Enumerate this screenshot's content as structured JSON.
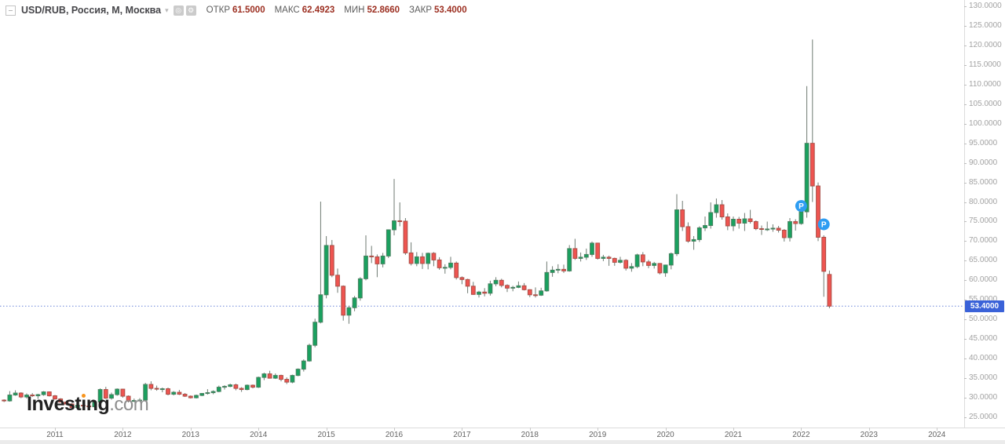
{
  "header": {
    "symbol_title": "USD/RUB, Россия, M, Москва",
    "ohlc": {
      "open_label": "ОТКР",
      "open": "61.5000",
      "high_label": "МАКС",
      "high": "62.4923",
      "low_label": "МИН",
      "low": "52.8660",
      "close_label": "ЗАКР",
      "close": "53.4000"
    },
    "icons": {
      "caret": "▾",
      "snapshot": "◎",
      "settings": "⚙"
    }
  },
  "watermark": {
    "brand_prefix": "Invest",
    "brand_i": "ı",
    "brand_suffix": "ng",
    "com": ".com"
  },
  "price_axis": {
    "labels": [
      "130.0000",
      "125.0000",
      "120.0000",
      "115.0000",
      "110.0000",
      "105.0000",
      "100.0000",
      "95.0000",
      "90.0000",
      "85.0000",
      "80.0000",
      "75.0000",
      "70.0000",
      "65.0000",
      "60.0000",
      "55.0000",
      "50.0000",
      "45.0000",
      "40.0000",
      "35.0000",
      "30.0000",
      "25.0000"
    ],
    "last_price": "53.4000",
    "last_price_value": 53.4,
    "badge_color": "#3a62d8"
  },
  "time_axis": {
    "years": [
      "2011",
      "2012",
      "2013",
      "2014",
      "2015",
      "2016",
      "2017",
      "2018",
      "2019",
      "2020",
      "2021",
      "2022",
      "2023",
      "2024"
    ]
  },
  "markers": [
    {
      "label": "P",
      "candle_index": 141,
      "price": 79.0,
      "color": "#2e9df2"
    },
    {
      "label": "P",
      "candle_index": 145,
      "price": 74.3,
      "color": "#2e9df2"
    }
  ],
  "colors": {
    "up_fill": "#19a15f",
    "up_stroke": "#47805f",
    "down_fill": "#ef5450",
    "down_stroke": "#aa4f47",
    "wick": "#6f7a72",
    "last_price_line": "#6c86d8",
    "axis_text": "#a2a2a2",
    "ohlc_value": "#9c2f21"
  },
  "chart_data": {
    "type": "candlestick",
    "title": "USD/RUB, Россия, M, Москва",
    "timeframe": "monthly",
    "ylim": [
      25,
      130
    ],
    "y_step": 5,
    "x_years": [
      2011,
      2024
    ],
    "grid": false,
    "last_close": 53.4,
    "columns": [
      "month",
      "open",
      "high",
      "low",
      "close"
    ],
    "candles": [
      [
        "2010-04",
        29.4,
        29.6,
        28.9,
        29.2
      ],
      [
        "2010-05",
        29.2,
        31.7,
        29.0,
        30.7
      ],
      [
        "2010-06",
        30.7,
        31.9,
        30.5,
        31.2
      ],
      [
        "2010-07",
        31.2,
        31.4,
        29.9,
        30.2
      ],
      [
        "2010-08",
        30.2,
        31.1,
        29.8,
        30.7
      ],
      [
        "2010-09",
        30.7,
        31.2,
        30.2,
        30.5
      ],
      [
        "2010-10",
        30.5,
        31.0,
        29.7,
        30.8
      ],
      [
        "2010-11",
        30.8,
        31.7,
        30.5,
        31.5
      ],
      [
        "2010-12",
        31.5,
        31.6,
        30.3,
        30.5
      ],
      [
        "2011-01",
        30.5,
        30.7,
        29.5,
        29.7
      ],
      [
        "2011-02",
        29.7,
        29.9,
        28.8,
        28.9
      ],
      [
        "2011-03",
        28.9,
        29.1,
        28.1,
        28.4
      ],
      [
        "2011-04",
        28.4,
        28.6,
        27.2,
        27.5
      ],
      [
        "2011-05",
        27.5,
        28.7,
        27.1,
        28.1
      ],
      [
        "2011-06",
        28.1,
        28.5,
        27.6,
        27.9
      ],
      [
        "2011-07",
        27.9,
        28.3,
        27.4,
        27.7
      ],
      [
        "2011-08",
        27.7,
        29.4,
        27.3,
        28.9
      ],
      [
        "2011-09",
        28.9,
        32.4,
        28.7,
        32.1
      ],
      [
        "2011-10",
        32.1,
        32.8,
        29.7,
        29.9
      ],
      [
        "2011-11",
        29.9,
        31.3,
        29.5,
        30.8
      ],
      [
        "2011-12",
        30.8,
        32.4,
        30.5,
        32.2
      ],
      [
        "2012-01",
        32.2,
        32.3,
        30.0,
        30.4
      ],
      [
        "2012-02",
        30.4,
        30.6,
        28.8,
        29.1
      ],
      [
        "2012-03",
        29.1,
        29.8,
        28.9,
        29.3
      ],
      [
        "2012-04",
        29.3,
        29.9,
        29.1,
        29.4
      ],
      [
        "2012-05",
        29.4,
        33.8,
        29.2,
        33.4
      ],
      [
        "2012-06",
        33.4,
        34.2,
        31.9,
        32.4
      ],
      [
        "2012-07",
        32.4,
        33.1,
        31.8,
        32.2
      ],
      [
        "2012-08",
        32.2,
        32.6,
        31.4,
        32.3
      ],
      [
        "2012-09",
        32.3,
        32.6,
        30.6,
        30.9
      ],
      [
        "2012-10",
        30.9,
        31.7,
        30.6,
        31.4
      ],
      [
        "2012-11",
        31.4,
        32.0,
        30.7,
        30.9
      ],
      [
        "2012-12",
        30.9,
        31.2,
        30.2,
        30.4
      ],
      [
        "2013-01",
        30.4,
        30.6,
        29.8,
        30.0
      ],
      [
        "2013-02",
        30.0,
        30.8,
        29.8,
        30.6
      ],
      [
        "2013-03",
        30.6,
        31.2,
        30.4,
        31.1
      ],
      [
        "2013-04",
        31.1,
        32.2,
        30.8,
        31.3
      ],
      [
        "2013-05",
        31.3,
        31.9,
        30.9,
        31.6
      ],
      [
        "2013-06",
        31.6,
        33.1,
        31.4,
        32.7
      ],
      [
        "2013-07",
        32.7,
        33.2,
        32.1,
        32.9
      ],
      [
        "2013-08",
        32.9,
        33.6,
        32.7,
        33.3
      ],
      [
        "2013-09",
        33.3,
        33.6,
        31.9,
        32.4
      ],
      [
        "2013-10",
        32.4,
        32.7,
        31.5,
        32.1
      ],
      [
        "2013-11",
        32.1,
        33.4,
        31.9,
        33.2
      ],
      [
        "2013-12",
        33.2,
        33.4,
        32.4,
        32.7
      ],
      [
        "2014-01",
        32.7,
        35.4,
        32.5,
        35.2
      ],
      [
        "2014-02",
        35.2,
        36.4,
        34.5,
        36.1
      ],
      [
        "2014-03",
        36.1,
        36.9,
        34.9,
        35.0
      ],
      [
        "2014-04",
        35.0,
        36.2,
        34.8,
        35.7
      ],
      [
        "2014-05",
        35.7,
        35.9,
        34.2,
        34.7
      ],
      [
        "2014-06",
        34.7,
        35.2,
        33.5,
        34.0
      ],
      [
        "2014-07",
        34.0,
        35.9,
        33.7,
        35.7
      ],
      [
        "2014-08",
        35.7,
        37.5,
        35.5,
        37.3
      ],
      [
        "2014-09",
        37.3,
        39.8,
        36.7,
        39.4
      ],
      [
        "2014-10",
        39.4,
        43.8,
        39.2,
        43.4
      ],
      [
        "2014-11",
        43.4,
        50.2,
        42.9,
        49.3
      ],
      [
        "2014-12",
        49.3,
        80.1,
        49.0,
        56.3
      ],
      [
        "2015-01",
        56.3,
        71.3,
        55.4,
        68.9
      ],
      [
        "2015-02",
        68.9,
        70.3,
        60.8,
        61.3
      ],
      [
        "2015-03",
        61.3,
        63.0,
        56.8,
        58.5
      ],
      [
        "2015-04",
        58.5,
        58.7,
        49.7,
        51.1
      ],
      [
        "2015-05",
        51.1,
        53.5,
        48.9,
        53.0
      ],
      [
        "2015-06",
        53.0,
        56.0,
        52.1,
        55.5
      ],
      [
        "2015-07",
        55.5,
        60.8,
        54.8,
        60.4
      ],
      [
        "2015-08",
        60.4,
        71.5,
        60.0,
        66.2
      ],
      [
        "2015-09",
        66.2,
        68.8,
        64.4,
        66.0
      ],
      [
        "2015-10",
        66.0,
        66.6,
        60.8,
        64.2
      ],
      [
        "2015-11",
        64.2,
        67.0,
        63.3,
        66.2
      ],
      [
        "2015-12",
        66.2,
        73.0,
        65.7,
        72.9
      ],
      [
        "2016-01",
        72.9,
        85.9,
        71.5,
        75.2
      ],
      [
        "2016-02",
        75.2,
        79.9,
        73.8,
        75.1
      ],
      [
        "2016-03",
        75.1,
        75.9,
        66.5,
        67.0
      ],
      [
        "2016-04",
        67.0,
        69.7,
        63.8,
        64.3
      ],
      [
        "2016-05",
        64.3,
        67.2,
        63.6,
        66.0
      ],
      [
        "2016-06",
        66.0,
        67.0,
        62.9,
        64.3
      ],
      [
        "2016-07",
        64.3,
        67.1,
        62.8,
        66.9
      ],
      [
        "2016-08",
        66.9,
        67.2,
        63.6,
        65.2
      ],
      [
        "2016-09",
        65.2,
        65.9,
        62.7,
        63.2
      ],
      [
        "2016-10",
        63.2,
        64.1,
        61.7,
        63.3
      ],
      [
        "2016-11",
        63.3,
        66.0,
        62.8,
        64.4
      ],
      [
        "2016-12",
        64.4,
        64.8,
        60.2,
        60.7
      ],
      [
        "2017-01",
        60.7,
        61.0,
        59.0,
        60.2
      ],
      [
        "2017-02",
        60.2,
        60.4,
        56.7,
        58.5
      ],
      [
        "2017-03",
        58.5,
        59.6,
        56.3,
        56.4
      ],
      [
        "2017-04",
        56.4,
        57.3,
        55.6,
        57.0
      ],
      [
        "2017-05",
        57.0,
        58.0,
        55.9,
        56.7
      ],
      [
        "2017-06",
        56.7,
        59.9,
        56.1,
        59.1
      ],
      [
        "2017-07",
        59.1,
        60.8,
        58.5,
        60.0
      ],
      [
        "2017-08",
        60.0,
        60.4,
        58.2,
        58.7
      ],
      [
        "2017-09",
        58.7,
        59.0,
        57.0,
        58.0
      ],
      [
        "2017-10",
        58.0,
        58.6,
        57.2,
        58.2
      ],
      [
        "2017-11",
        58.2,
        59.7,
        58.0,
        58.6
      ],
      [
        "2017-12",
        58.6,
        59.3,
        57.4,
        57.6
      ],
      [
        "2018-01",
        57.6,
        57.7,
        55.7,
        56.3
      ],
      [
        "2018-02",
        56.3,
        58.2,
        55.6,
        56.2
      ],
      [
        "2018-03",
        56.2,
        58.1,
        56.0,
        57.3
      ],
      [
        "2018-04",
        57.3,
        64.8,
        57.1,
        62.0
      ],
      [
        "2018-05",
        62.0,
        63.6,
        60.9,
        62.6
      ],
      [
        "2018-06",
        62.6,
        64.1,
        61.8,
        62.8
      ],
      [
        "2018-07",
        62.8,
        64.0,
        61.9,
        62.4
      ],
      [
        "2018-08",
        62.4,
        69.0,
        62.2,
        68.1
      ],
      [
        "2018-09",
        68.1,
        70.6,
        65.2,
        65.6
      ],
      [
        "2018-10",
        65.6,
        67.1,
        64.8,
        65.9
      ],
      [
        "2018-11",
        65.9,
        68.1,
        65.2,
        66.6
      ],
      [
        "2018-12",
        66.6,
        69.9,
        66.0,
        69.5
      ],
      [
        "2019-01",
        69.5,
        69.6,
        65.3,
        65.6
      ],
      [
        "2019-02",
        65.6,
        66.5,
        64.9,
        65.9
      ],
      [
        "2019-03",
        65.9,
        66.3,
        63.7,
        65.6
      ],
      [
        "2019-04",
        65.6,
        65.8,
        63.7,
        64.6
      ],
      [
        "2019-05",
        64.6,
        66.0,
        64.3,
        65.1
      ],
      [
        "2019-06",
        65.1,
        65.4,
        62.5,
        63.1
      ],
      [
        "2019-07",
        63.1,
        64.4,
        62.2,
        63.5
      ],
      [
        "2019-08",
        63.5,
        66.8,
        63.1,
        66.5
      ],
      [
        "2019-09",
        66.5,
        67.2,
        63.6,
        64.7
      ],
      [
        "2019-10",
        64.7,
        65.2,
        63.1,
        63.8
      ],
      [
        "2019-11",
        63.8,
        64.7,
        63.0,
        64.3
      ],
      [
        "2019-12",
        64.3,
        64.4,
        61.5,
        61.9
      ],
      [
        "2020-01",
        61.9,
        64.0,
        60.9,
        63.9
      ],
      [
        "2020-02",
        63.9,
        67.1,
        62.8,
        66.8
      ],
      [
        "2020-03",
        66.8,
        82.0,
        66.2,
        78.0
      ],
      [
        "2020-04",
        78.0,
        80.3,
        72.6,
        73.7
      ],
      [
        "2020-05",
        73.7,
        74.8,
        69.6,
        70.0
      ],
      [
        "2020-06",
        70.0,
        71.3,
        67.8,
        70.4
      ],
      [
        "2020-07",
        70.4,
        73.8,
        69.8,
        73.4
      ],
      [
        "2020-08",
        73.4,
        76.3,
        72.6,
        74.0
      ],
      [
        "2020-09",
        74.0,
        79.9,
        73.2,
        77.3
      ],
      [
        "2020-10",
        77.3,
        80.9,
        76.0,
        79.3
      ],
      [
        "2020-11",
        79.3,
        80.5,
        75.5,
        76.2
      ],
      [
        "2020-12",
        76.2,
        77.1,
        72.8,
        73.9
      ],
      [
        "2021-01",
        73.9,
        76.3,
        72.6,
        75.6
      ],
      [
        "2021-02",
        75.6,
        76.2,
        73.2,
        74.6
      ],
      [
        "2021-03",
        74.6,
        77.2,
        72.6,
        75.7
      ],
      [
        "2021-04",
        75.7,
        78.0,
        74.5,
        75.0
      ],
      [
        "2021-05",
        75.0,
        75.3,
        72.8,
        73.2
      ],
      [
        "2021-06",
        73.2,
        74.0,
        71.6,
        73.1
      ],
      [
        "2021-07",
        73.1,
        75.0,
        72.6,
        73.1
      ],
      [
        "2021-08",
        73.1,
        74.3,
        72.4,
        73.3
      ],
      [
        "2021-09",
        73.3,
        73.9,
        72.2,
        72.8
      ],
      [
        "2021-10",
        72.8,
        73.1,
        69.9,
        70.9
      ],
      [
        "2021-11",
        70.9,
        75.9,
        69.9,
        75.0
      ],
      [
        "2021-12",
        75.0,
        75.6,
        72.7,
        74.5
      ],
      [
        "2022-01",
        74.5,
        79.3,
        74.2,
        77.5
      ],
      [
        "2022-02",
        77.5,
        109.6,
        76.0,
        95.0
      ],
      [
        "2022-03",
        95.0,
        121.5,
        80.0,
        84.1
      ],
      [
        "2022-04",
        84.1,
        85.0,
        70.0,
        71.0
      ],
      [
        "2022-05",
        71.0,
        71.5,
        55.8,
        62.3
      ],
      [
        "2022-06",
        61.5,
        62.4923,
        52.866,
        53.4
      ]
    ]
  }
}
